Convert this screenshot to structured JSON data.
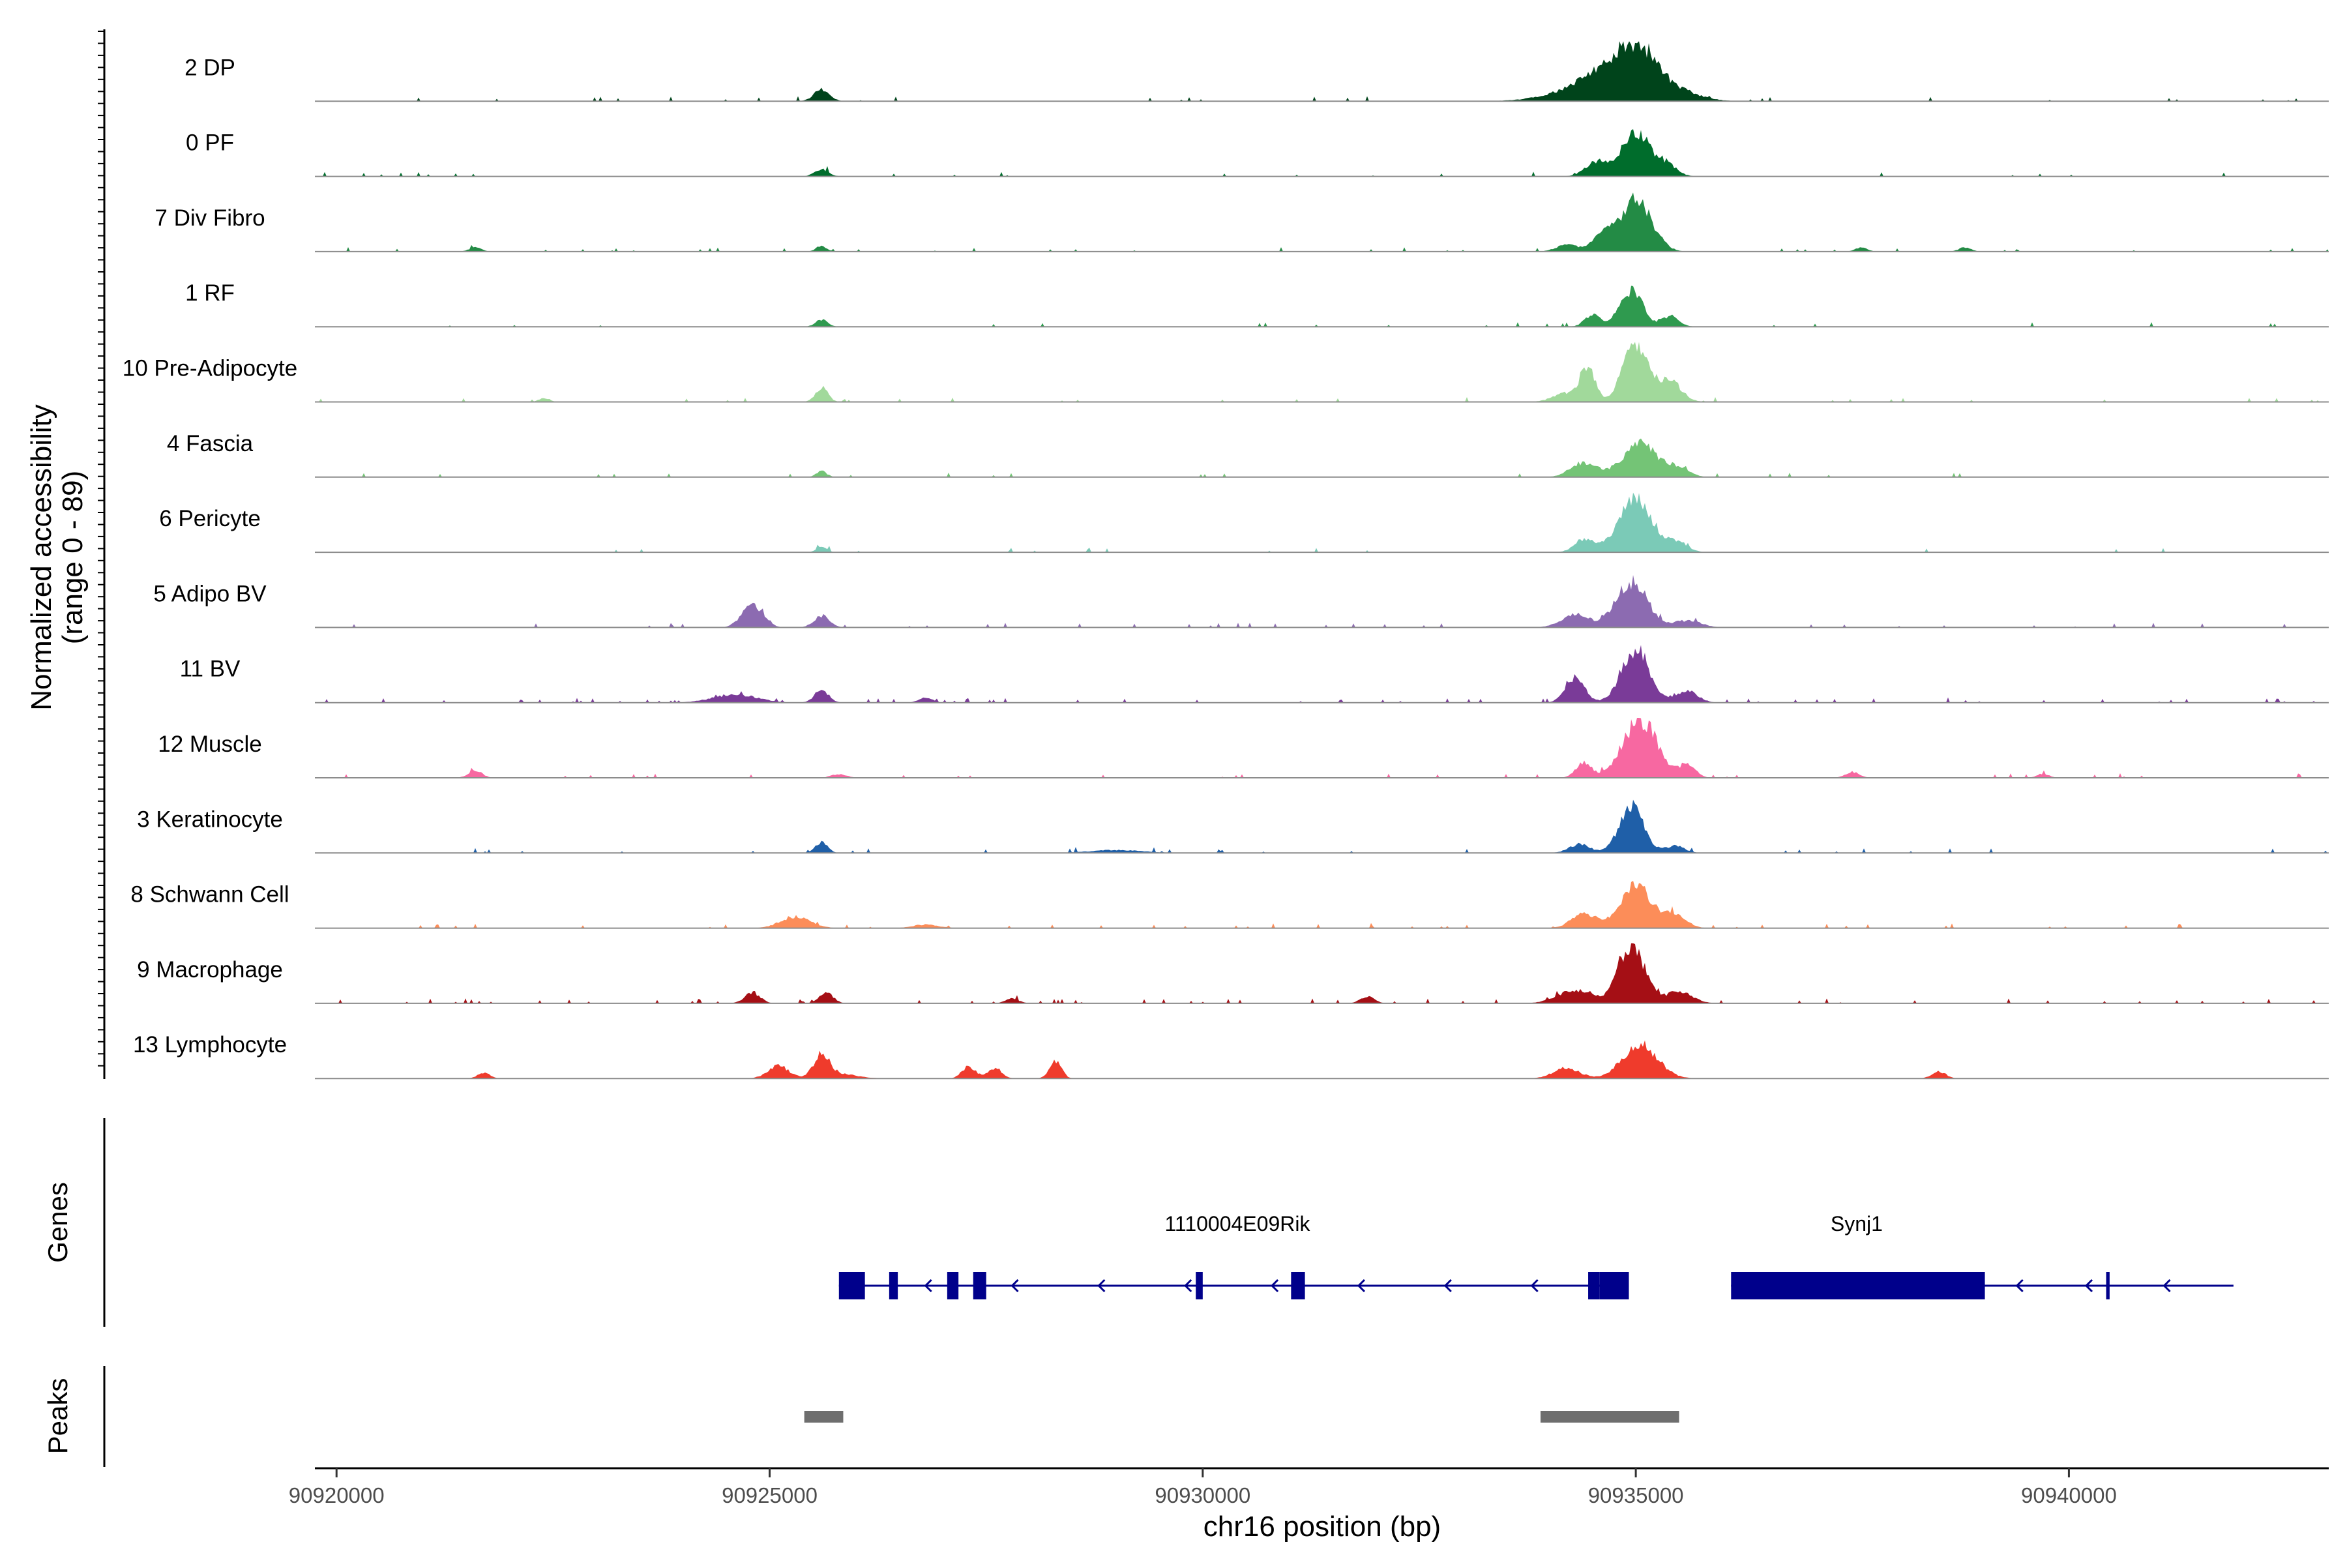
{
  "chart_data": {
    "type": "area",
    "ylabel_line1": "Normalized accessibility",
    "ylabel_line2": "(range 0 - 89)",
    "ylim": [
      0,
      89
    ],
    "xlabel": "chr16 position (bp)",
    "xlim": [
      90919750,
      90943000
    ],
    "xticks": [
      90920000,
      90925000,
      90930000,
      90935000,
      90940000
    ],
    "xtick_labels": [
      "90920000",
      "90925000",
      "90930000",
      "90935000",
      "90940000"
    ],
    "genes_label": "Genes",
    "peaks_label": "Peaks",
    "tracks": [
      {
        "name": "2 DP",
        "color": "#00441b",
        "noise": 0.03,
        "peaks": [
          [
            90935000,
            250,
            0.82
          ],
          [
            90934600,
            300,
            0.35
          ],
          [
            90935500,
            250,
            0.15
          ],
          [
            90934200,
            350,
            0.1
          ],
          [
            90925600,
            90,
            0.2
          ]
        ]
      },
      {
        "name": "0 PF",
        "color": "#006d2c",
        "noise": 0.02,
        "peaks": [
          [
            90935000,
            160,
            0.75
          ],
          [
            90934550,
            130,
            0.25
          ],
          [
            90935350,
            120,
            0.2
          ],
          [
            90925600,
            80,
            0.12
          ]
        ]
      },
      {
        "name": "7 Div Fibro",
        "color": "#238b45",
        "noise": 0.035,
        "peaks": [
          [
            90935000,
            180,
            0.92
          ],
          [
            90934600,
            120,
            0.25
          ],
          [
            90934200,
            120,
            0.12
          ],
          [
            90925600,
            60,
            0.1
          ],
          [
            90921600,
            70,
            0.07
          ],
          [
            90937600,
            70,
            0.07
          ],
          [
            90938800,
            70,
            0.07
          ]
        ]
      },
      {
        "name": "1 RF",
        "color": "#2f9a4f",
        "noise": 0.02,
        "peaks": [
          [
            90934950,
            130,
            0.62
          ],
          [
            90934500,
            90,
            0.2
          ],
          [
            90935400,
            100,
            0.18
          ],
          [
            90925600,
            70,
            0.12
          ]
        ]
      },
      {
        "name": "10 Pre-Adipocyte",
        "color": "#a1d99b",
        "noise": 0.04,
        "peaks": [
          [
            90935000,
            150,
            0.95
          ],
          [
            90934450,
            80,
            0.6
          ],
          [
            90935400,
            130,
            0.35
          ],
          [
            90934200,
            150,
            0.15
          ],
          [
            90925600,
            70,
            0.25
          ],
          [
            90922400,
            60,
            0.07
          ]
        ]
      },
      {
        "name": "4 Fascia",
        "color": "#74c476",
        "noise": 0.02,
        "peaks": [
          [
            90935050,
            200,
            0.58
          ],
          [
            90934400,
            150,
            0.25
          ],
          [
            90935500,
            120,
            0.15
          ],
          [
            90925600,
            60,
            0.1
          ]
        ]
      },
      {
        "name": "6 Pericyte",
        "color": "#7bcab7",
        "noise": 0.02,
        "peaks": [
          [
            90935000,
            200,
            0.88
          ],
          [
            90934400,
            110,
            0.22
          ],
          [
            90935500,
            110,
            0.15
          ],
          [
            90925600,
            60,
            0.1
          ]
        ]
      },
      {
        "name": "5 Adipo BV",
        "color": "#8c6bb1",
        "noise": 0.03,
        "peaks": [
          [
            90934950,
            180,
            0.78
          ],
          [
            90934300,
            160,
            0.22
          ],
          [
            90935600,
            150,
            0.12
          ],
          [
            90924800,
            120,
            0.38
          ],
          [
            90925600,
            90,
            0.2
          ]
        ]
      },
      {
        "name": "11 BV",
        "color": "#7a3b98",
        "noise": 0.07,
        "peaks": [
          [
            90935000,
            160,
            0.9
          ],
          [
            90934300,
            110,
            0.42
          ],
          [
            90935600,
            120,
            0.2
          ],
          [
            90924600,
            250,
            0.14
          ],
          [
            90925600,
            80,
            0.22
          ],
          [
            90926800,
            80,
            0.08
          ]
        ]
      },
      {
        "name": "12 Muscle",
        "color": "#f768a1",
        "noise": 0.035,
        "peaks": [
          [
            90935050,
            200,
            1.0
          ],
          [
            90934400,
            90,
            0.25
          ],
          [
            90935600,
            90,
            0.22
          ],
          [
            90921600,
            80,
            0.12
          ],
          [
            90925800,
            90,
            0.06
          ],
          [
            90937500,
            80,
            0.1
          ],
          [
            90939700,
            70,
            0.07
          ]
        ]
      },
      {
        "name": "3 Keratinocyte",
        "color": "#1f5fa8",
        "noise": 0.025,
        "peaks": [
          [
            90934950,
            140,
            0.78
          ],
          [
            90934350,
            120,
            0.15
          ],
          [
            90935450,
            110,
            0.12
          ],
          [
            90925600,
            70,
            0.18
          ],
          [
            90929000,
            300,
            0.05
          ]
        ]
      },
      {
        "name": "8 Schwann Cell",
        "color": "#fc8d59",
        "noise": 0.04,
        "peaks": [
          [
            90935000,
            180,
            0.72
          ],
          [
            90934400,
            140,
            0.25
          ],
          [
            90935450,
            130,
            0.22
          ],
          [
            90925300,
            170,
            0.2
          ],
          [
            90926800,
            150,
            0.06
          ]
        ]
      },
      {
        "name": "9 Macrophage",
        "color": "#a50f15",
        "noise": 0.05,
        "peaks": [
          [
            90934950,
            150,
            1.0
          ],
          [
            90934300,
            200,
            0.22
          ],
          [
            90935500,
            150,
            0.2
          ],
          [
            90924800,
            90,
            0.18
          ],
          [
            90925650,
            80,
            0.2
          ],
          [
            90931900,
            80,
            0.12
          ],
          [
            90927800,
            80,
            0.08
          ]
        ]
      },
      {
        "name": "13 Lymphocyte",
        "color": "#ef3b2c",
        "noise": 0.0,
        "peaks": [
          [
            90935050,
            200,
            0.58
          ],
          [
            90934200,
            150,
            0.18
          ],
          [
            90925600,
            90,
            0.38
          ],
          [
            90925100,
            120,
            0.22
          ],
          [
            90927300,
            80,
            0.2
          ],
          [
            90927600,
            80,
            0.18
          ],
          [
            90928300,
            70,
            0.28
          ],
          [
            90921700,
            70,
            0.1
          ],
          [
            90938500,
            80,
            0.12
          ],
          [
            90925800,
            200,
            0.08
          ]
        ]
      }
    ],
    "genes": {
      "color": "#00008b",
      "items": [
        {
          "name": "1110004E09Rik",
          "label_x": 90930400,
          "start": 90925800,
          "end": 90934920,
          "exons": [
            [
              90925800,
              90926100
            ],
            [
              90926380,
              90926480
            ],
            [
              90927050,
              90927180
            ],
            [
              90927350,
              90927500
            ],
            [
              90929920,
              90930000
            ],
            [
              90931020,
              90931180
            ],
            [
              90934450,
              90934580
            ],
            [
              90934580,
              90934920
            ]
          ],
          "arrows": [
            90926800,
            90927800,
            90928800,
            90929800,
            90930800,
            90931800,
            90932800,
            90933800
          ]
        },
        {
          "name": "Synj1",
          "label_x": 90937550,
          "start": 90936100,
          "end": 90941900,
          "exons": [
            [
              90936100,
              90939030
            ],
            [
              90940430,
              90940470
            ]
          ],
          "arrows": [
            90939400,
            90940200,
            90941100
          ]
        }
      ]
    },
    "peaks": {
      "color": "#6e6e6e",
      "regions": [
        [
          90925400,
          90925850
        ],
        [
          90933900,
          90935500
        ]
      ]
    }
  }
}
